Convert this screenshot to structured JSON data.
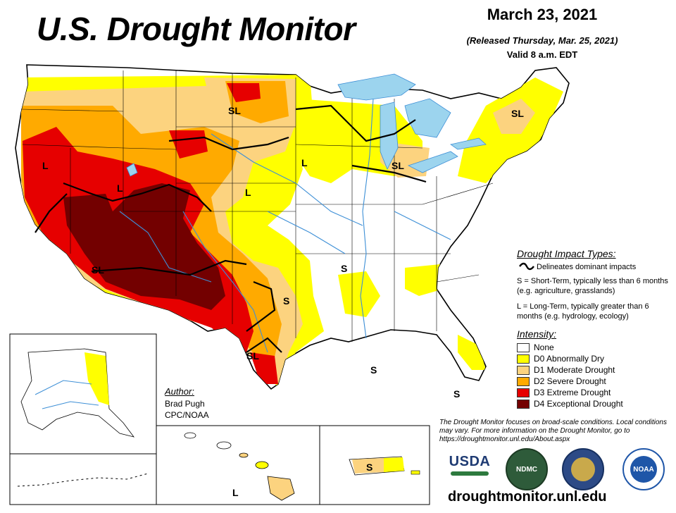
{
  "header": {
    "title": "U.S. Drought Monitor",
    "date": "March 23, 2021",
    "released": "(Released Thursday, Mar. 25, 2021)",
    "valid": "Valid 8 a.m. EDT"
  },
  "impacts": {
    "heading": "Drought Impact Types:",
    "delineates": "Delineates dominant impacts",
    "short_term": "S = Short-Term, typically less than 6 months (e.g. agriculture, grasslands)",
    "long_term": "L = Long-Term, typically greater than 6 months (e.g. hydrology, ecology)"
  },
  "intensity": {
    "heading": "Intensity:",
    "levels": [
      {
        "label": "None",
        "color": "#ffffff"
      },
      {
        "label": "D0 Abnormally Dry",
        "color": "#ffff00"
      },
      {
        "label": "D1 Moderate Drought",
        "color": "#fcd37f"
      },
      {
        "label": "D2 Severe Drought",
        "color": "#ffaa00"
      },
      {
        "label": "D3 Extreme Drought",
        "color": "#e60000"
      },
      {
        "label": "D4 Exceptional Drought",
        "color": "#730000"
      }
    ]
  },
  "author": {
    "heading": "Author:",
    "name": "Brad Pugh",
    "org": "CPC/NOAA"
  },
  "disclaimer": "The Drought Monitor focuses on broad-scale conditions. Local conditions may vary. For more information on the Drought Monitor, go to https://droughtmonitor.unl.edu/About.aspx",
  "website": "droughtmonitor.unl.edu",
  "logos": {
    "usda": "USDA",
    "ndmc": "NDMC",
    "noaa": "NOAA"
  },
  "map_labels": {
    "sl": "SL",
    "s": "S",
    "l": "L"
  },
  "map_colors": {
    "water": "#9cd4ee",
    "river": "#3d8fd6",
    "border": "#000000"
  }
}
